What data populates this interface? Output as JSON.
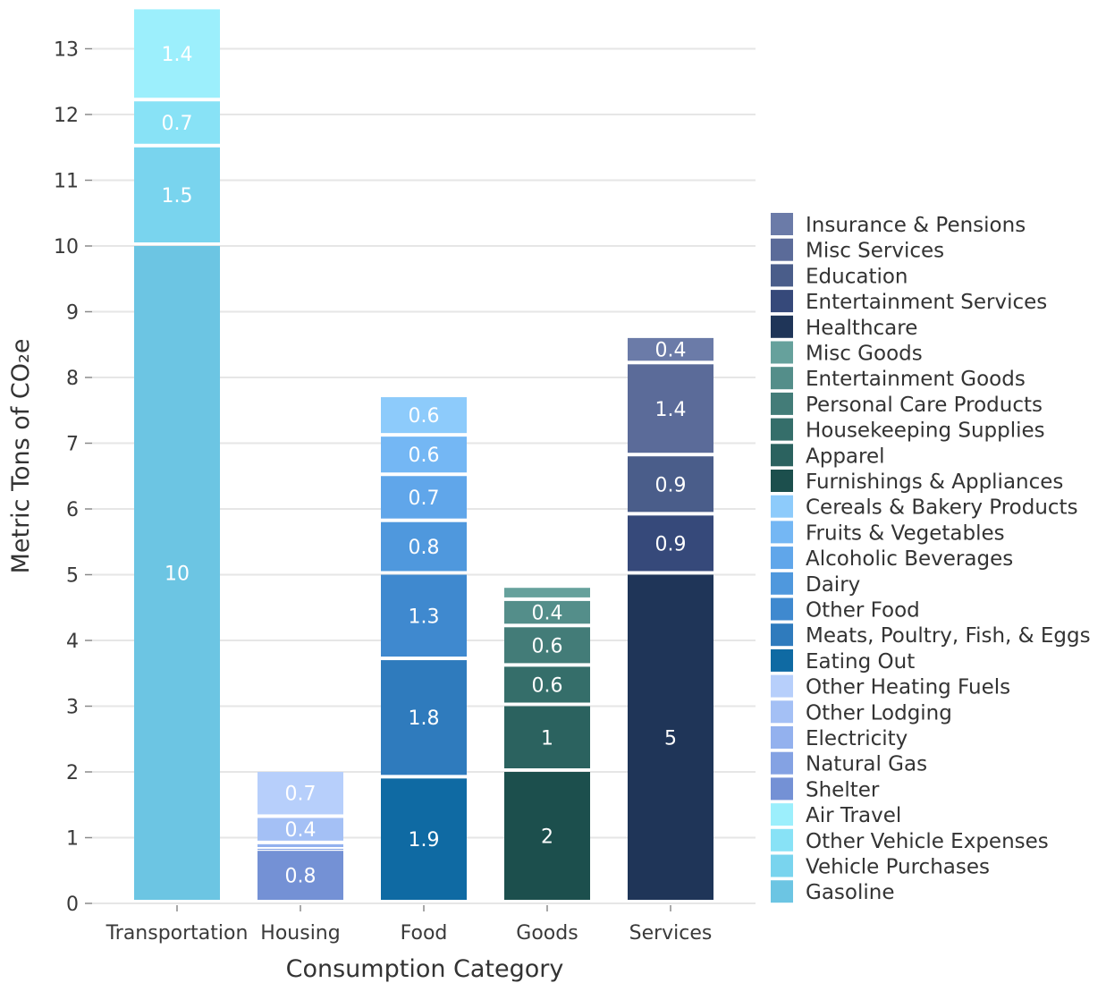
{
  "chart_data": {
    "type": "bar",
    "stacked": true,
    "xlabel": "Consumption Category",
    "ylabel": "Metric Tons of CO₂e",
    "ylim": [
      0,
      13.6
    ],
    "yticks": [
      0,
      1,
      2,
      3,
      4,
      5,
      6,
      7,
      8,
      9,
      10,
      11,
      12,
      13
    ],
    "grid": true,
    "legend_position": "right",
    "categories": [
      "Transportation",
      "Housing",
      "Food",
      "Goods",
      "Services"
    ],
    "stacks": [
      {
        "category": "Transportation",
        "segments": [
          {
            "series": "Gasoline",
            "value": 10,
            "label": "10"
          },
          {
            "series": "Vehicle Purchases",
            "value": 1.5,
            "label": "1.5"
          },
          {
            "series": "Other Vehicle Expenses",
            "value": 0.7,
            "label": "0.7"
          },
          {
            "series": "Air Travel",
            "value": 1.4,
            "label": "1.4"
          }
        ]
      },
      {
        "category": "Housing",
        "segments": [
          {
            "series": "Shelter",
            "value": 0.8,
            "label": "0.8"
          },
          {
            "series": "Natural Gas",
            "value": 0.03,
            "label": ""
          },
          {
            "series": "Electricity",
            "value": 0.07,
            "label": ""
          },
          {
            "series": "Other Lodging",
            "value": 0.4,
            "label": "0.4"
          },
          {
            "series": "Other Heating Fuels",
            "value": 0.7,
            "label": "0.7"
          }
        ]
      },
      {
        "category": "Food",
        "segments": [
          {
            "series": "Eating Out",
            "value": 1.9,
            "label": "1.9"
          },
          {
            "series": "Meats, Poultry, Fish, & Eggs",
            "value": 1.8,
            "label": "1.8"
          },
          {
            "series": "Other Food",
            "value": 1.3,
            "label": "1.3"
          },
          {
            "series": "Dairy",
            "value": 0.8,
            "label": "0.8"
          },
          {
            "series": "Alcoholic Beverages",
            "value": 0.7,
            "label": "0.7"
          },
          {
            "series": "Fruits & Vegetables",
            "value": 0.6,
            "label": "0.6"
          },
          {
            "series": "Cereals & Bakery Products",
            "value": 0.6,
            "label": "0.6"
          }
        ]
      },
      {
        "category": "Goods",
        "segments": [
          {
            "series": "Furnishings & Appliances",
            "value": 2,
            "label": "2"
          },
          {
            "series": "Apparel",
            "value": 1,
            "label": "1"
          },
          {
            "series": "Housekeeping Supplies",
            "value": 0.6,
            "label": "0.6"
          },
          {
            "series": "Personal Care Products",
            "value": 0.6,
            "label": "0.6"
          },
          {
            "series": "Entertainment Goods",
            "value": 0.4,
            "label": "0.4"
          },
          {
            "series": "Misc Goods",
            "value": 0.2,
            "label": ""
          }
        ]
      },
      {
        "category": "Services",
        "segments": [
          {
            "series": "Healthcare",
            "value": 5,
            "label": "5"
          },
          {
            "series": "Entertainment Services",
            "value": 0.9,
            "label": "0.9"
          },
          {
            "series": "Education",
            "value": 0.9,
            "label": "0.9"
          },
          {
            "series": "Misc Services",
            "value": 1.4,
            "label": "1.4"
          },
          {
            "series": "Insurance & Pensions",
            "value": 0.4,
            "label": "0.4"
          }
        ]
      }
    ],
    "legend": [
      {
        "name": "Insurance & Pensions",
        "color": "#6b7ba8"
      },
      {
        "name": "Misc Services",
        "color": "#5b6b99"
      },
      {
        "name": "Education",
        "color": "#4a5d8a"
      },
      {
        "name": "Entertainment Services",
        "color": "#36497a"
      },
      {
        "name": "Healthcare",
        "color": "#1f3558"
      },
      {
        "name": "Misc Goods",
        "color": "#66a19c"
      },
      {
        "name": "Entertainment Goods",
        "color": "#548e8a"
      },
      {
        "name": "Personal Care Products",
        "color": "#437c78"
      },
      {
        "name": "Housekeeping Supplies",
        "color": "#356e6a"
      },
      {
        "name": "Apparel",
        "color": "#2b625f"
      },
      {
        "name": "Furnishings & Appliances",
        "color": "#1c4f4d"
      },
      {
        "name": "Cereals & Bakery Products",
        "color": "#8dcbfb"
      },
      {
        "name": "Fruits & Vegetables",
        "color": "#74b7f4"
      },
      {
        "name": "Alcoholic Beverages",
        "color": "#60a6ea"
      },
      {
        "name": "Dairy",
        "color": "#4f98dd"
      },
      {
        "name": "Other Food",
        "color": "#3f89cf"
      },
      {
        "name": "Meats, Poultry, Fish, & Eggs",
        "color": "#2f7bbd"
      },
      {
        "name": "Eating Out",
        "color": "#0f6aa3"
      },
      {
        "name": "Other Heating Fuels",
        "color": "#b7cffb"
      },
      {
        "name": "Other Lodging",
        "color": "#a4c0f5"
      },
      {
        "name": "Electricity",
        "color": "#93b1ee"
      },
      {
        "name": "Natural Gas",
        "color": "#84a2e3"
      },
      {
        "name": "Shelter",
        "color": "#7491d5"
      },
      {
        "name": "Air Travel",
        "color": "#9ceffc"
      },
      {
        "name": "Other Vehicle Expenses",
        "color": "#88e2f6"
      },
      {
        "name": "Vehicle Purchases",
        "color": "#79d4ee"
      },
      {
        "name": "Gasoline",
        "color": "#6cc5e3"
      }
    ]
  }
}
